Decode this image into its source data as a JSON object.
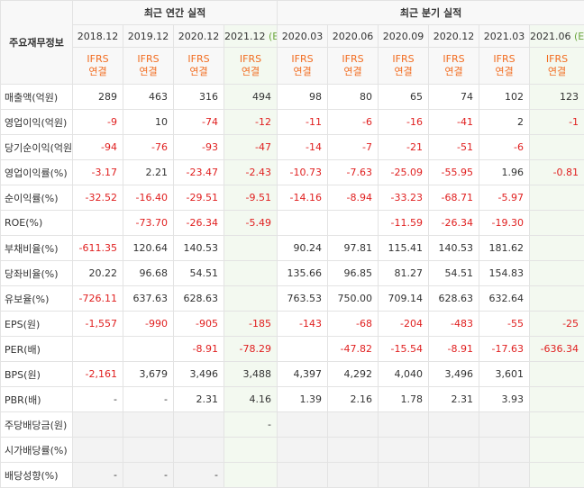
{
  "header": {
    "corner_label": "주요재무정보",
    "annual_title": "최근 연간 실적",
    "quarter_title": "최근 분기 실적",
    "ifrs_line1": "IFRS",
    "ifrs_line2": "연결",
    "estimate_mark": "(E)",
    "annual_dates": [
      "2018.12",
      "2019.12",
      "2020.12",
      "2021.12"
    ],
    "quarter_dates": [
      "2020.03",
      "2020.06",
      "2020.09",
      "2020.12",
      "2021.03",
      "2021.06"
    ]
  },
  "rows": [
    {
      "label": "매출액(억원)",
      "values": [
        "289",
        "463",
        "316",
        "494",
        "98",
        "80",
        "65",
        "74",
        "102",
        "123"
      ]
    },
    {
      "label": "영업이익(억원)",
      "values": [
        "-9",
        "10",
        "-74",
        "-12",
        "-11",
        "-6",
        "-16",
        "-41",
        "2",
        "-1"
      ]
    },
    {
      "label": "당기순이익(억원)",
      "values": [
        "-94",
        "-76",
        "-93",
        "-47",
        "-14",
        "-7",
        "-21",
        "-51",
        "-6",
        ""
      ]
    },
    {
      "label": "영업이익률(%)",
      "values": [
        "-3.17",
        "2.21",
        "-23.47",
        "-2.43",
        "-10.73",
        "-7.63",
        "-25.09",
        "-55.95",
        "1.96",
        "-0.81"
      ]
    },
    {
      "label": "순이익률(%)",
      "values": [
        "-32.52",
        "-16.40",
        "-29.51",
        "-9.51",
        "-14.16",
        "-8.94",
        "-33.23",
        "-68.71",
        "-5.97",
        ""
      ]
    },
    {
      "label": "ROE(%)",
      "values": [
        "",
        "-73.70",
        "-26.34",
        "-5.49",
        "",
        "",
        "-11.59",
        "-26.34",
        "-19.30",
        ""
      ]
    },
    {
      "label": "부채비율(%)",
      "values": [
        "-611.35",
        "120.64",
        "140.53",
        "",
        "90.24",
        "97.81",
        "115.41",
        "140.53",
        "181.62",
        ""
      ]
    },
    {
      "label": "당좌비율(%)",
      "values": [
        "20.22",
        "96.68",
        "54.51",
        "",
        "135.66",
        "96.85",
        "81.27",
        "54.51",
        "154.83",
        ""
      ]
    },
    {
      "label": "유보율(%)",
      "values": [
        "-726.11",
        "637.63",
        "628.63",
        "",
        "763.53",
        "750.00",
        "709.14",
        "628.63",
        "632.64",
        ""
      ]
    },
    {
      "label": "EPS(원)",
      "values": [
        "-1,557",
        "-990",
        "-905",
        "-185",
        "-143",
        "-68",
        "-204",
        "-483",
        "-55",
        "-25"
      ]
    },
    {
      "label": "PER(배)",
      "values": [
        "",
        "",
        "-8.91",
        "-78.29",
        "",
        "-47.82",
        "-15.54",
        "-8.91",
        "-17.63",
        "-636.34"
      ]
    },
    {
      "label": "BPS(원)",
      "values": [
        "-2,161",
        "3,679",
        "3,496",
        "3,488",
        "4,397",
        "4,292",
        "4,040",
        "3,496",
        "3,601",
        ""
      ]
    },
    {
      "label": "PBR(배)",
      "values": [
        "-",
        "-",
        "2.31",
        "4.16",
        "1.39",
        "2.16",
        "1.78",
        "2.31",
        "3.93",
        ""
      ]
    },
    {
      "label": "주당배당금(원)",
      "values": [
        "",
        "",
        "",
        "-",
        "",
        "",
        "",
        "",
        "",
        ""
      ]
    },
    {
      "label": "시가배당률(%)",
      "values": [
        "",
        "",
        "",
        "",
        "",
        "",
        "",
        "",
        "",
        ""
      ]
    },
    {
      "label": "배당성향(%)",
      "values": [
        "-",
        "-",
        "-",
        "",
        "",
        "",
        "",
        "",
        "",
        ""
      ]
    }
  ]
}
